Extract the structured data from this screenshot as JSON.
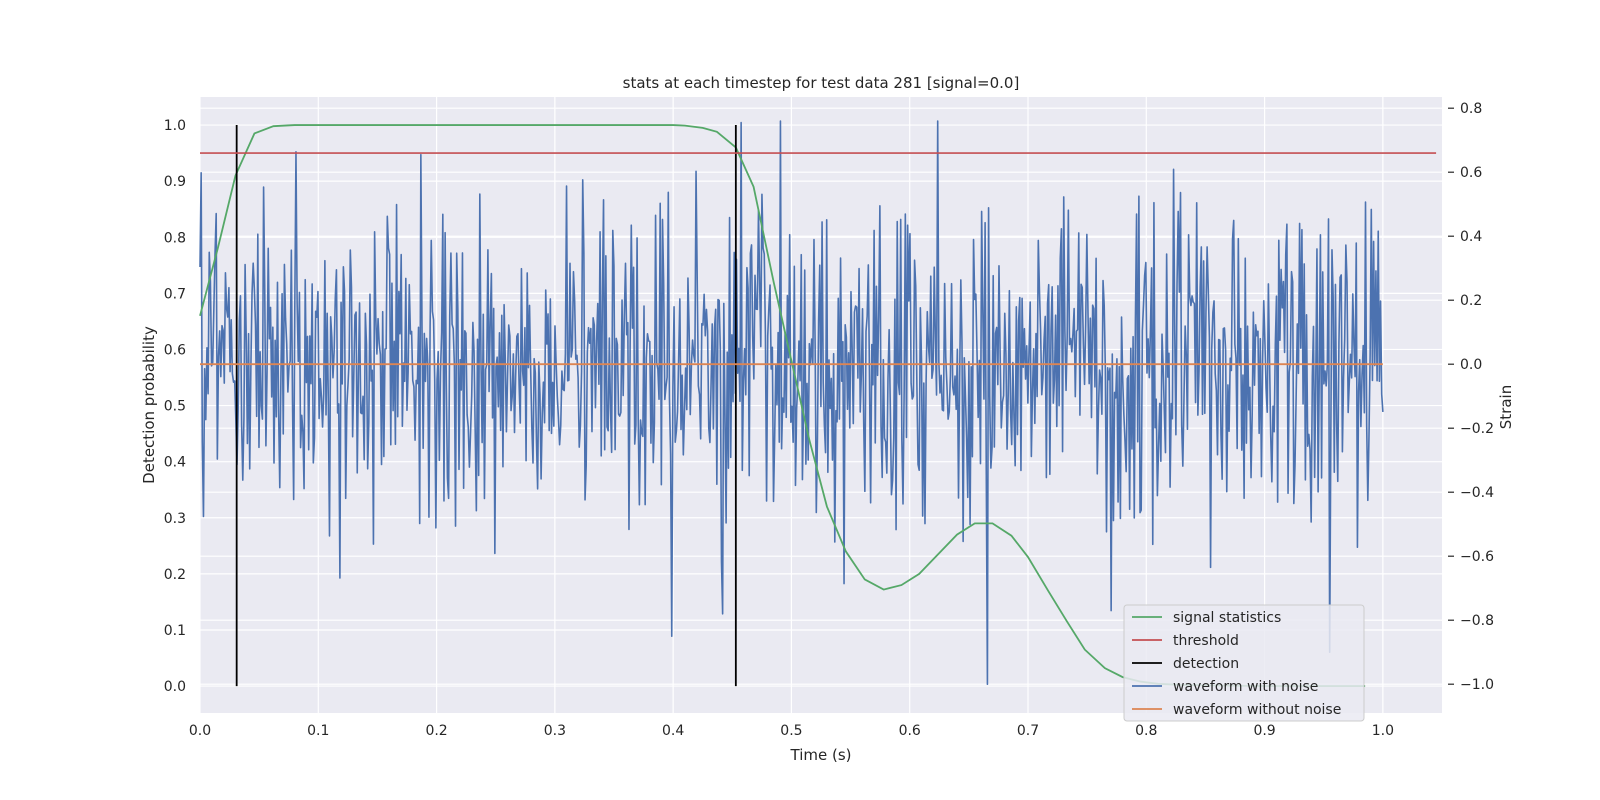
{
  "chart_data": {
    "type": "line",
    "title": "stats at each timestep for test data 281 [signal=0.0]",
    "xlabel": "Time (s)",
    "ylabel_left": "Detection probability",
    "ylabel_right": "Strain",
    "xlim": [
      0.0,
      1.05
    ],
    "ylim_left": [
      -0.048,
      1.05
    ],
    "ylim_right": [
      -1.09,
      0.835
    ],
    "x_ticks": [
      0.0,
      0.1,
      0.2,
      0.3,
      0.4,
      0.5,
      0.6,
      0.7,
      0.8,
      0.9,
      1.0
    ],
    "x_tick_labels": [
      "0.0",
      "0.1",
      "0.2",
      "0.3",
      "0.4",
      "0.5",
      "0.6",
      "0.7",
      "0.8",
      "0.9",
      "1.0"
    ],
    "y_left_ticks": [
      0.0,
      0.1,
      0.2,
      0.3,
      0.4,
      0.5,
      0.6,
      0.7,
      0.8,
      0.9,
      1.0
    ],
    "y_left_tick_labels": [
      "0.0",
      "0.1",
      "0.2",
      "0.3",
      "0.4",
      "0.5",
      "0.6",
      "0.7",
      "0.8",
      "0.9",
      "1.0"
    ],
    "y_right_ticks": [
      0.8,
      0.6,
      0.4,
      0.2,
      0.0,
      -0.2,
      -0.4,
      -0.6,
      -0.8,
      -1.0
    ],
    "y_right_tick_labels": [
      "0.8",
      "0.6",
      "0.4",
      "0.2",
      "0.0",
      "−0.2",
      "−0.4",
      "−0.6",
      "−0.8",
      "−1.0"
    ],
    "grid": true,
    "legend_position": "bottom-right",
    "series": [
      {
        "name": "signal statistics",
        "color": "#55a868",
        "axis": "left",
        "x": [
          0.0,
          0.015,
          0.03,
          0.046,
          0.062,
          0.08,
          0.1,
          0.2,
          0.3,
          0.4,
          0.41,
          0.425,
          0.437,
          0.453,
          0.468,
          0.485,
          0.5,
          0.515,
          0.53,
          0.546,
          0.562,
          0.578,
          0.593,
          0.608,
          0.624,
          0.64,
          0.655,
          0.67,
          0.686,
          0.7,
          0.717,
          0.733,
          0.748,
          0.765,
          0.78,
          0.795,
          0.81,
          0.83,
          0.86,
          0.9,
          0.95,
          0.985
        ],
        "y": [
          0.66,
          0.78,
          0.91,
          0.985,
          0.998,
          1.0,
          1.0,
          1.0,
          1.0,
          1.0,
          0.999,
          0.995,
          0.988,
          0.96,
          0.89,
          0.72,
          0.58,
          0.44,
          0.32,
          0.24,
          0.19,
          0.172,
          0.18,
          0.2,
          0.235,
          0.27,
          0.29,
          0.29,
          0.268,
          0.23,
          0.17,
          0.115,
          0.065,
          0.032,
          0.016,
          0.008,
          0.004,
          0.002,
          0.001,
          0.0,
          0.0,
          0.0
        ]
      },
      {
        "name": "threshold",
        "color": "#c44e52",
        "axis": "left",
        "x": [
          0.0,
          1.045
        ],
        "y": [
          0.95,
          0.95
        ]
      },
      {
        "name": "detection",
        "color": "#000000",
        "axis": "left",
        "x": [
          0.031,
          0.453
        ],
        "y": [
          1.0,
          1.0
        ]
      },
      {
        "name": "waveform with noise",
        "color": "#4c72b0",
        "axis": "right",
        "x_range": [
          0.0,
          1.0
        ],
        "n_points": 1024,
        "y_min": -1.0,
        "y_max": 0.76
      },
      {
        "name": "waveform without noise",
        "color": "#dd8452",
        "axis": "right",
        "x": [
          0.0,
          1.0
        ],
        "y": [
          0.0,
          0.0
        ]
      }
    ]
  },
  "legend": {
    "items": [
      {
        "label": "signal statistics",
        "color": "#55a868"
      },
      {
        "label": "threshold",
        "color": "#c44e52"
      },
      {
        "label": "detection",
        "color": "#000000"
      },
      {
        "label": "waveform with noise",
        "color": "#4c72b0"
      },
      {
        "label": "waveform without noise",
        "color": "#dd8452"
      }
    ]
  },
  "colors": {
    "plot_background": "#eaeaf2",
    "grid": "#ffffff",
    "text": "#262626"
  }
}
